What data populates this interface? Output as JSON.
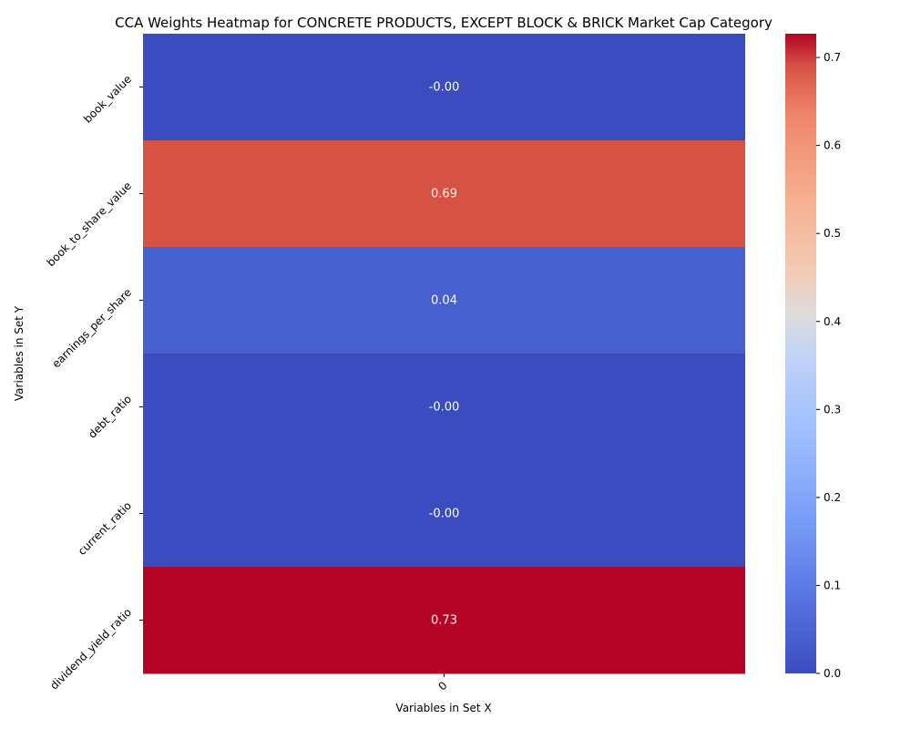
{
  "chart_data": {
    "type": "heatmap",
    "title": "CCA Weights Heatmap for CONCRETE PRODUCTS, EXCEPT BLOCK & BRICK Market Cap Category",
    "xlabel": "Variables in Set X",
    "ylabel": "Variables in Set Y",
    "x_categories": [
      "0"
    ],
    "y_categories": [
      "book_value",
      "book_to_share_value",
      "earnings_per_share",
      "debt_ratio",
      "current_ratio",
      "dividend_yield_ratio"
    ],
    "values": [
      [
        -0.0
      ],
      [
        0.69
      ],
      [
        0.04
      ],
      [
        -0.0
      ],
      [
        -0.0
      ],
      [
        0.73
      ]
    ],
    "annotations": [
      "-0.00",
      "0.69",
      "0.04",
      "-0.00",
      "-0.00",
      "0.73"
    ],
    "colormap": "coolwarm",
    "colorbar": {
      "vmin": 0.0,
      "vmax": 0.727,
      "ticks": [
        0.0,
        0.1,
        0.2,
        0.3,
        0.4,
        0.5,
        0.6,
        0.7
      ],
      "tick_labels": [
        "0.0",
        "0.1",
        "0.2",
        "0.3",
        "0.4",
        "0.5",
        "0.6",
        "0.7"
      ]
    },
    "annotation_color": "#ffffff"
  }
}
